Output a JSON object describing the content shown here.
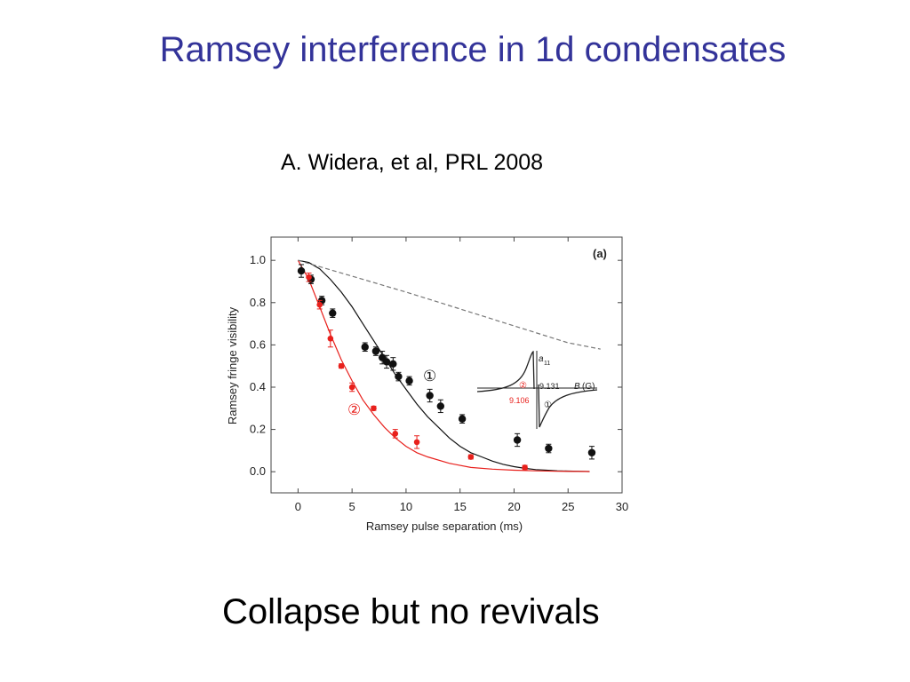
{
  "slide": {
    "title": "Ramsey interference in 1d condensates",
    "citation": "A. Widera, et al, PRL 2008",
    "caption": "Collapse but no revivals"
  },
  "colors": {
    "title": "#333399",
    "series_black": "#111111",
    "series_red": "#e8201c",
    "dashed_curve": "#777777"
  },
  "chart_data": {
    "type": "scatter",
    "panel_label": "(a)",
    "xlabel": "Ramsey pulse separation (ms)",
    "ylabel": "Ramsey fringe visibility",
    "xlim": [
      -2.5,
      30
    ],
    "ylim": [
      -0.1,
      1.11
    ],
    "xticks": [
      0,
      5,
      10,
      15,
      20,
      25,
      30
    ],
    "yticks": [
      0.0,
      0.2,
      0.4,
      0.6,
      0.8,
      1.0
    ],
    "ytick_labels": [
      "0.0",
      "0.2",
      "0.4",
      "0.6",
      "0.8",
      "1.0"
    ],
    "series": [
      {
        "label": "①",
        "color": "#111111",
        "x": [
          0.3,
          1.2,
          2.2,
          3.2,
          6.2,
          7.2,
          7.8,
          8.2,
          8.8,
          9.3,
          10.3,
          12.2,
          13.2,
          15.2,
          20.3,
          23.2,
          27.2
        ],
        "y": [
          0.95,
          0.91,
          0.81,
          0.75,
          0.59,
          0.57,
          0.54,
          0.52,
          0.51,
          0.45,
          0.43,
          0.36,
          0.31,
          0.25,
          0.15,
          0.11,
          0.09
        ],
        "err": [
          0.03,
          0.02,
          0.02,
          0.02,
          0.02,
          0.02,
          0.03,
          0.03,
          0.03,
          0.02,
          0.02,
          0.03,
          0.03,
          0.02,
          0.03,
          0.02,
          0.03
        ]
      },
      {
        "label": "②",
        "color": "#e8201c",
        "x": [
          1.0,
          2.0,
          3.0,
          4.0,
          5.0,
          7.0,
          9.0,
          11.0,
          16.0,
          21.0
        ],
        "y": [
          0.92,
          0.79,
          0.63,
          0.5,
          0.4,
          0.3,
          0.18,
          0.14,
          0.07,
          0.02
        ],
        "err": [
          0.02,
          0.02,
          0.04,
          0.01,
          0.02,
          0.01,
          0.02,
          0.03,
          0.01,
          0.01
        ]
      }
    ],
    "fit_curves": [
      {
        "style": "solid",
        "color": "#111111",
        "x": [
          0,
          1,
          2,
          3,
          4,
          5,
          6,
          7,
          8,
          9,
          10,
          11,
          12,
          13,
          14,
          15,
          16,
          17,
          18,
          19,
          20,
          21,
          22,
          23,
          24,
          25,
          26,
          27
        ],
        "y": [
          1.0,
          0.99,
          0.96,
          0.91,
          0.85,
          0.78,
          0.7,
          0.62,
          0.54,
          0.46,
          0.39,
          0.32,
          0.26,
          0.21,
          0.16,
          0.12,
          0.09,
          0.07,
          0.05,
          0.035,
          0.024,
          0.016,
          0.01,
          0.007,
          0.004,
          0.003,
          0.002,
          0.001
        ]
      },
      {
        "style": "solid",
        "color": "#e8201c",
        "x": [
          0,
          1,
          2,
          3,
          4,
          5,
          6,
          7,
          8,
          9,
          10,
          11,
          12,
          14,
          16,
          18,
          20,
          22,
          24,
          27
        ],
        "y": [
          1.0,
          0.91,
          0.78,
          0.65,
          0.53,
          0.43,
          0.34,
          0.27,
          0.21,
          0.16,
          0.12,
          0.09,
          0.07,
          0.04,
          0.02,
          0.012,
          0.007,
          0.004,
          0.002,
          0.001
        ]
      },
      {
        "style": "dashed",
        "color": "#777777",
        "x": [
          0,
          5,
          10,
          15,
          20,
          25,
          28
        ],
        "y": [
          1.0,
          0.925,
          0.85,
          0.77,
          0.69,
          0.61,
          0.58
        ]
      }
    ],
    "inset": {
      "curve_labels": [
        "②",
        "①"
      ],
      "axis_labels": {
        "x": "B",
        "x_unit": "(G)",
        "y": "a",
        "y_sub": "11"
      },
      "tick_labels": [
        "9.131",
        "9.106"
      ]
    }
  }
}
